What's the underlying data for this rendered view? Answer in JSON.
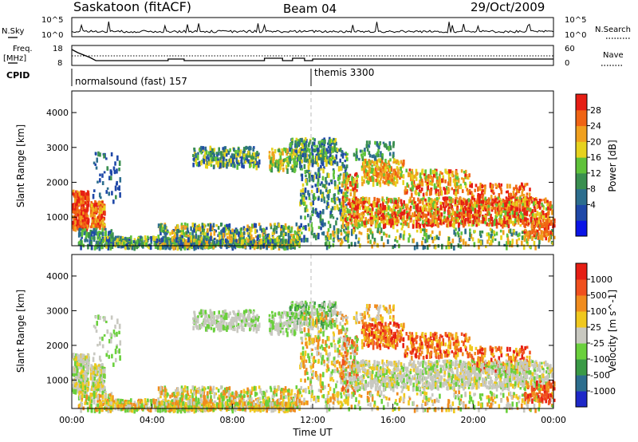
{
  "header": {
    "station": "Saskatoon (fitACF)",
    "beam": "Beam 04",
    "date": "29/Oct/2009"
  },
  "nsky_panel": {
    "left_label": "N.Sky",
    "right_label": "N.Search",
    "ticks": [
      "10^5",
      "10^0"
    ]
  },
  "freq_panel": {
    "left_label_1": "Freq.",
    "left_label_2": "[MHz]",
    "right_label": "Nave",
    "left_ticks": [
      "18",
      "8"
    ],
    "right_ticks": [
      "60",
      "0"
    ]
  },
  "cpid_panel": {
    "label": "CPID",
    "programs": [
      "normalsound (fast) 157",
      "themis 3300"
    ]
  },
  "chart_data": [
    {
      "type": "heatmap",
      "panel": "power",
      "ylabel": "Slant Range [km]",
      "yticks": [
        "4000",
        "3000",
        "2000",
        "1000"
      ],
      "ylim": [
        180,
        4620
      ],
      "xlim": [
        0,
        24
      ],
      "colorbar_label": "Power [dB]",
      "colorbar_ticks": [
        "28",
        "24",
        "20",
        "16",
        "12",
        "8",
        "4"
      ],
      "colors": [
        "#0a14e6",
        "#1f48a8",
        "#2d6e8e",
        "#3a8f50",
        "#5fc23a",
        "#e6d21e",
        "#f0a01e",
        "#f06414",
        "#e61e14"
      ]
    },
    {
      "type": "heatmap",
      "panel": "velocity",
      "ylabel": "Slant Range [km]",
      "yticks": [
        "4000",
        "3000",
        "2000",
        "1000"
      ],
      "ylim": [
        180,
        4620
      ],
      "xlim": [
        0,
        24
      ],
      "xlabel": "Time UT",
      "xticks": [
        "00:00",
        "04:00",
        "08:00",
        "12:00",
        "16:00",
        "20:00",
        "00:00"
      ],
      "colorbar_label": "Velocity [m s^-1]",
      "colorbar_ticks": [
        "1000",
        "500",
        "100",
        "25",
        "-25",
        "-100",
        "-500",
        "-1000"
      ],
      "colors": [
        "#1e28c8",
        "#2d6e8e",
        "#3a9a46",
        "#6ad03c",
        "#c8c8c0",
        "#f0c81e",
        "#f08c1e",
        "#f0501e",
        "#e61e14"
      ]
    }
  ]
}
